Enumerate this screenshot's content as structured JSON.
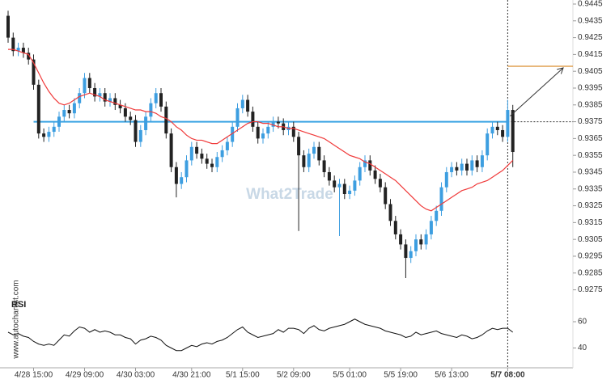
{
  "chart_data": {
    "type": "candlestick",
    "watermark": "What2Trade",
    "source": "www.autochartist.com",
    "x": [
      null,
      null,
      null,
      null,
      null,
      "4/28 15:00",
      null,
      null,
      null,
      null,
      null,
      null,
      null,
      null,
      null,
      "4/29 09:00",
      null,
      null,
      null,
      null,
      null,
      null,
      null,
      null,
      null,
      "4/30 03:00",
      null,
      null,
      null,
      null,
      null,
      null,
      null,
      null,
      null,
      null,
      "4/30 21:00",
      null,
      null,
      null,
      null,
      null,
      null,
      null,
      null,
      null,
      "5/1 15:00",
      null,
      null,
      null,
      null,
      null,
      null,
      null,
      null,
      null,
      "5/2 09:00",
      null,
      null,
      null,
      null,
      null,
      null,
      null,
      null,
      null,
      null,
      "5/5 01:00",
      null,
      null,
      null,
      null,
      null,
      null,
      null,
      null,
      null,
      "5/5 19:00",
      null,
      null,
      null,
      null,
      null,
      null,
      null,
      null,
      null,
      "5/6 13:00",
      null,
      null,
      null,
      null,
      null,
      null,
      null,
      null,
      null,
      null,
      "5/7 08:00",
      null
    ],
    "open": [
      0.9438,
      0.9425,
      0.9417,
      0.9419,
      0.9416,
      0.9412,
      0.9397,
      0.9368,
      0.9366,
      0.9369,
      0.9372,
      0.9378,
      0.9382,
      0.938,
      0.9386,
      0.9392,
      0.9401,
      0.9395,
      0.939,
      0.9392,
      0.9387,
      0.9389,
      0.9385,
      0.9383,
      0.9378,
      0.9376,
      0.9363,
      0.937,
      0.9378,
      0.9386,
      0.9392,
      0.9384,
      0.9368,
      0.9348,
      0.9338,
      0.9342,
      0.9352,
      0.936,
      0.9356,
      0.9353,
      0.935,
      0.9348,
      0.9354,
      0.9358,
      0.9363,
      0.9372,
      0.9383,
      0.9388,
      0.9381,
      0.9372,
      0.9365,
      0.9368,
      0.9372,
      0.9375,
      0.9374,
      0.937,
      0.9372,
      0.9366,
      0.9355,
      0.9348,
      0.9356,
      0.936,
      0.9352,
      0.9345,
      0.934,
      0.9336,
      0.9338,
      0.9332,
      0.9334,
      0.934,
      0.9348,
      0.9352,
      0.9346,
      0.9341,
      0.9336,
      0.9326,
      0.9316,
      0.9308,
      0.9302,
      0.9294,
      0.9298,
      0.9305,
      0.9302,
      0.9308,
      0.9316,
      0.9322,
      0.9336,
      0.9345,
      0.9348,
      0.9346,
      0.935,
      0.9346,
      0.9352,
      0.9348,
      0.9355,
      0.9368,
      0.9372,
      0.937,
      0.9366,
      0.9382
    ],
    "high": [
      0.9441,
      0.9428,
      0.9422,
      0.9422,
      0.9419,
      0.9415,
      0.94,
      0.9371,
      0.9372,
      0.9375,
      0.9381,
      0.9385,
      0.9385,
      0.9389,
      0.9395,
      0.9404,
      0.9404,
      0.9398,
      0.9395,
      0.9395,
      0.9392,
      0.9392,
      0.9388,
      0.9386,
      0.9381,
      0.9379,
      0.9373,
      0.9381,
      0.9389,
      0.9395,
      0.9395,
      0.9387,
      0.9371,
      0.9351,
      0.9345,
      0.9355,
      0.9363,
      0.9363,
      0.9359,
      0.9356,
      0.9353,
      0.9357,
      0.9361,
      0.9366,
      0.9375,
      0.9386,
      0.9391,
      0.9391,
      0.9384,
      0.9375,
      0.9371,
      0.9375,
      0.9378,
      0.9378,
      0.9377,
      0.9375,
      0.9375,
      0.9369,
      0.9358,
      0.9359,
      0.9363,
      0.9363,
      0.9355,
      0.9348,
      0.9343,
      0.9341,
      0.9341,
      0.9337,
      0.9343,
      0.9351,
      0.9355,
      0.9355,
      0.9349,
      0.9344,
      0.9339,
      0.9329,
      0.9319,
      0.9311,
      0.9305,
      0.9301,
      0.9308,
      0.9308,
      0.9311,
      0.9319,
      0.9325,
      0.9339,
      0.9348,
      0.9351,
      0.9351,
      0.9353,
      0.9353,
      0.9355,
      0.9355,
      0.9358,
      0.9371,
      0.9375,
      0.9375,
      0.9373,
      0.9388,
      0.9385
    ],
    "low": [
      0.9422,
      0.9414,
      0.9414,
      0.9413,
      0.9409,
      0.9394,
      0.9365,
      0.9363,
      0.9363,
      0.9366,
      0.9369,
      0.9375,
      0.9377,
      0.9377,
      0.9383,
      0.9389,
      0.9392,
      0.9387,
      0.9387,
      0.9384,
      0.9384,
      0.9382,
      0.938,
      0.9375,
      0.9373,
      0.936,
      0.936,
      0.9367,
      0.9375,
      0.9383,
      0.9381,
      0.9365,
      0.9345,
      0.933,
      0.9335,
      0.9339,
      0.9349,
      0.9353,
      0.935,
      0.9347,
      0.9345,
      0.9345,
      0.9351,
      0.9355,
      0.936,
      0.9369,
      0.938,
      0.9378,
      0.9369,
      0.9362,
      0.9362,
      0.9365,
      0.9369,
      0.9371,
      0.9367,
      0.9367,
      0.9363,
      0.931,
      0.9345,
      0.9345,
      0.9353,
      0.9349,
      0.9342,
      0.9337,
      0.9333,
      0.9307,
      0.9329,
      0.9329,
      0.9331,
      0.9337,
      0.9345,
      0.9343,
      0.9338,
      0.9333,
      0.9323,
      0.9313,
      0.9305,
      0.9299,
      0.9282,
      0.9291,
      0.9295,
      0.9299,
      0.9299,
      0.9305,
      0.9313,
      0.9319,
      0.9333,
      0.9342,
      0.9343,
      0.9343,
      0.9343,
      0.9343,
      0.9345,
      0.9345,
      0.9352,
      0.9365,
      0.9367,
      0.9363,
      0.9363,
      0.9348
    ],
    "close": [
      0.9425,
      0.9417,
      0.9419,
      0.9416,
      0.9412,
      0.9397,
      0.9368,
      0.9366,
      0.9369,
      0.9372,
      0.9378,
      0.9382,
      0.938,
      0.9386,
      0.9392,
      0.9401,
      0.9395,
      0.939,
      0.9392,
      0.9387,
      0.9389,
      0.9385,
      0.9383,
      0.9378,
      0.9376,
      0.9363,
      0.937,
      0.9378,
      0.9386,
      0.9392,
      0.9384,
      0.9368,
      0.9348,
      0.9338,
      0.9342,
      0.9352,
      0.936,
      0.9356,
      0.9353,
      0.935,
      0.9348,
      0.9354,
      0.9358,
      0.9363,
      0.9372,
      0.9383,
      0.9388,
      0.9381,
      0.9372,
      0.9365,
      0.9368,
      0.9372,
      0.9375,
      0.9374,
      0.937,
      0.9372,
      0.9366,
      0.9355,
      0.9348,
      0.9356,
      0.936,
      0.9352,
      0.9345,
      0.934,
      0.9336,
      0.9338,
      0.9332,
      0.9334,
      0.934,
      0.9348,
      0.9352,
      0.9346,
      0.9341,
      0.9336,
      0.9326,
      0.9316,
      0.9308,
      0.9302,
      0.9294,
      0.9298,
      0.9305,
      0.9302,
      0.9308,
      0.9316,
      0.9322,
      0.9336,
      0.9345,
      0.9348,
      0.9346,
      0.935,
      0.9346,
      0.9352,
      0.9348,
      0.9355,
      0.9368,
      0.9372,
      0.937,
      0.9366,
      0.9382,
      0.9357
    ],
    "up_color": "#3d9ee0",
    "down_color": "#222222",
    "overlays": [
      {
        "color": "#f03a3a",
        "values": [
          0.9418,
          0.9418,
          0.9417,
          0.9416,
          0.9415,
          0.941,
          0.9404,
          0.9398,
          0.9393,
          0.9389,
          0.9386,
          0.9385,
          0.9386,
          0.9388,
          0.939,
          0.9391,
          0.9392,
          0.9391,
          0.939,
          0.9388,
          0.9387,
          0.9386,
          0.9385,
          0.9384,
          0.9383,
          0.9382,
          0.9382,
          0.9381,
          0.9381,
          0.938,
          0.9378,
          0.9377,
          0.9375,
          0.9372,
          0.937,
          0.9367,
          0.9365,
          0.9364,
          0.9364,
          0.9363,
          0.9362,
          0.9362,
          0.9364,
          0.9366,
          0.9368,
          0.937,
          0.9372,
          0.9374,
          0.9375,
          0.9375,
          0.9374,
          0.9374,
          0.9373,
          0.9372,
          0.9372,
          0.9371,
          0.9371,
          0.937,
          0.9369,
          0.9368,
          0.9367,
          0.9366,
          0.9365,
          0.9363,
          0.9361,
          0.9359,
          0.9357,
          0.9355,
          0.9354,
          0.9353,
          0.9351,
          0.935,
          0.9348,
          0.9346,
          0.9344,
          0.9342,
          0.934,
          0.9337,
          0.9334,
          0.9331,
          0.9328,
          0.9325,
          0.9323,
          0.9322,
          0.9324,
          0.9326,
          0.9328,
          0.933,
          0.9332,
          0.9334,
          0.9335,
          0.9336,
          0.9338,
          0.9339,
          0.934,
          0.9342,
          0.9344,
          0.9346,
          0.9349,
          0.9352
        ]
      }
    ],
    "levels": [
      {
        "value": 0.9375,
        "color": "#3aa3e3"
      }
    ],
    "target": {
      "value": 0.9408,
      "color": "#e0a050"
    },
    "ylim": [
      0.92695,
      0.94474
    ],
    "yticks": [
      0.9445,
      0.9435,
      0.9425,
      0.9415,
      0.9405,
      0.9395,
      0.9385,
      0.9375,
      0.9365,
      0.9355,
      0.9345,
      0.9335,
      0.9325,
      0.9315,
      0.9305,
      0.9295,
      0.9285,
      0.9275
    ],
    "rsi": {
      "label": "RSI",
      "ylim": [
        28,
        68
      ],
      "yticks": [
        60,
        40
      ],
      "values": [
        52,
        50,
        51,
        49,
        48,
        45,
        43,
        42,
        43,
        42,
        46,
        50,
        49,
        53,
        56,
        55,
        52,
        54,
        52,
        53,
        52,
        50,
        50,
        48,
        47,
        43,
        46,
        47,
        49,
        48,
        46,
        42,
        40,
        38,
        38,
        40,
        42,
        41,
        43,
        44,
        43,
        45,
        46,
        48,
        51,
        54,
        56,
        52,
        50,
        48,
        49,
        50,
        51,
        54,
        52,
        55,
        55,
        54,
        51,
        55,
        57,
        54,
        53,
        55,
        56,
        57,
        58,
        60,
        62,
        60,
        58,
        57,
        56,
        55,
        53,
        52,
        51,
        50,
        48,
        49,
        52,
        50,
        51,
        52,
        53,
        51,
        50,
        49,
        48,
        50,
        49,
        47,
        48,
        50,
        53,
        55,
        54,
        55,
        55,
        52
      ]
    }
  }
}
